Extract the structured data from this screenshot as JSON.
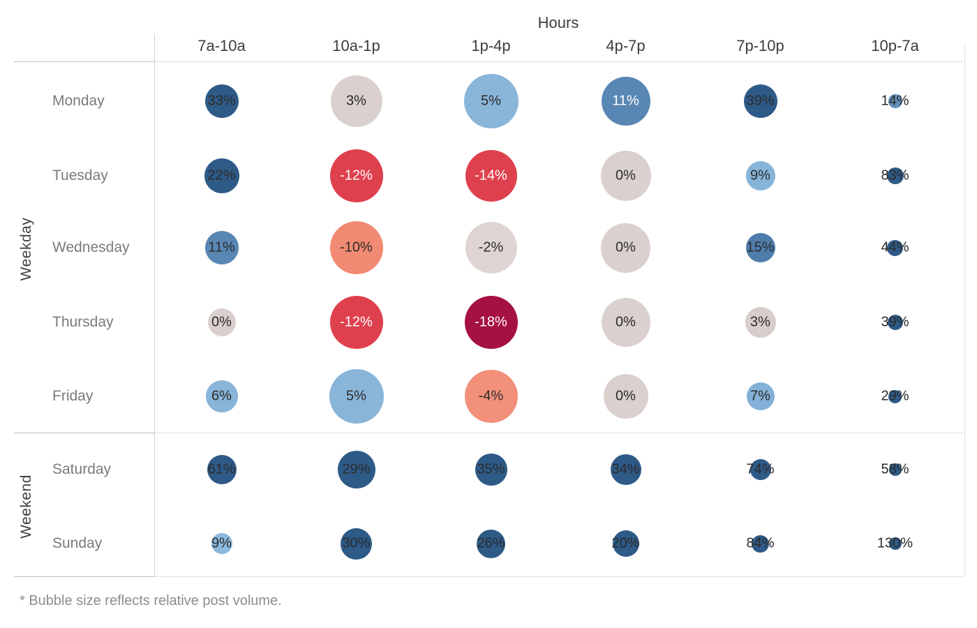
{
  "axis": {
    "title": "Hours"
  },
  "footnote": "* Bubble size reflects relative post volume.",
  "columns": [
    "7a-10a",
    "10a-1p",
    "1p-4p",
    "4p-7p",
    "7p-10p",
    "10p-7a"
  ],
  "groups": [
    {
      "label": "Weekday",
      "rows": [
        {
          "label": "Monday",
          "cells": [
            {
              "label": "33%",
              "size": 48,
              "fill": "#2e5a87",
              "text": "#2b2b2b"
            },
            {
              "label": "3%",
              "size": 74,
              "fill": "#dad0cd",
              "text": "#2b2b2b"
            },
            {
              "label": "5%",
              "size": 78,
              "fill": "#89b5d9",
              "text": "#2b2b2b"
            },
            {
              "label": "11%",
              "size": 70,
              "fill": "#5987b4",
              "text": "#ffffff"
            },
            {
              "label": "39%",
              "size": 48,
              "fill": "#2e5a87",
              "text": "#2b2b2b"
            },
            {
              "label": "14%",
              "size": 20,
              "fill": "#6290ba",
              "text": "#2b2b2b"
            }
          ]
        },
        {
          "label": "Tuesday",
          "cells": [
            {
              "label": "22%",
              "size": 50,
              "fill": "#2e5a87",
              "text": "#2b2b2b"
            },
            {
              "label": "-12%",
              "size": 76,
              "fill": "#df404e",
              "text": "#ffffff"
            },
            {
              "label": "-14%",
              "size": 74,
              "fill": "#df404e",
              "text": "#ffffff"
            },
            {
              "label": "0%",
              "size": 72,
              "fill": "#dad0cd",
              "text": "#2b2b2b"
            },
            {
              "label": "9%",
              "size": 42,
              "fill": "#87b5da",
              "text": "#2b2b2b"
            },
            {
              "label": "83%",
              "size": 24,
              "fill": "#2e5a87",
              "text": "#2b2b2b"
            }
          ]
        },
        {
          "label": "Wednesday",
          "cells": [
            {
              "label": "11%",
              "size": 48,
              "fill": "#5987b4",
              "text": "#2b2b2b"
            },
            {
              "label": "-10%",
              "size": 76,
              "fill": "#f18a72",
              "text": "#2b2b2b"
            },
            {
              "label": "-2%",
              "size": 74,
              "fill": "#ded4d1",
              "text": "#2b2b2b"
            },
            {
              "label": "0%",
              "size": 71,
              "fill": "#dad0cd",
              "text": "#2b2b2b"
            },
            {
              "label": "15%",
              "size": 42,
              "fill": "#4e7dab",
              "text": "#2b2b2b"
            },
            {
              "label": "44%",
              "size": 23,
              "fill": "#2e5a87",
              "text": "#2b2b2b"
            }
          ]
        },
        {
          "label": "Thursday",
          "cells": [
            {
              "label": "0%",
              "size": 40,
              "fill": "#dad0cd",
              "text": "#2b2b2b"
            },
            {
              "label": "-12%",
              "size": 76,
              "fill": "#df404e",
              "text": "#ffffff"
            },
            {
              "label": "-18%",
              "size": 76,
              "fill": "#a51140",
              "text": "#ffffff"
            },
            {
              "label": "0%",
              "size": 70,
              "fill": "#dad0cd",
              "text": "#2b2b2b"
            },
            {
              "label": "3%",
              "size": 44,
              "fill": "#d7cdca",
              "text": "#2b2b2b"
            },
            {
              "label": "39%",
              "size": 22,
              "fill": "#2e5a87",
              "text": "#2b2b2b"
            }
          ]
        },
        {
          "label": "Friday",
          "cells": [
            {
              "label": "6%",
              "size": 46,
              "fill": "#89b5d9",
              "text": "#2b2b2b"
            },
            {
              "label": "5%",
              "size": 78,
              "fill": "#89b5d9",
              "text": "#2b2b2b"
            },
            {
              "label": "-4%",
              "size": 76,
              "fill": "#f29079",
              "text": "#2b2b2b"
            },
            {
              "label": "0%",
              "size": 64,
              "fill": "#dad0cd",
              "text": "#2b2b2b"
            },
            {
              "label": "7%",
              "size": 40,
              "fill": "#83b1d7",
              "text": "#2b2b2b"
            },
            {
              "label": "29%",
              "size": 19,
              "fill": "#2e5a87",
              "text": "#2b2b2b"
            }
          ]
        }
      ]
    },
    {
      "label": "Weekend",
      "rows": [
        {
          "label": "Saturday",
          "cells": [
            {
              "label": "61%",
              "size": 42,
              "fill": "#2e5a87",
              "text": "#2b2b2b"
            },
            {
              "label": "29%",
              "size": 54,
              "fill": "#2e5a87",
              "text": "#2b2b2b"
            },
            {
              "label": "35%",
              "size": 46,
              "fill": "#2e5a87",
              "text": "#2b2b2b"
            },
            {
              "label": "34%",
              "size": 44,
              "fill": "#2e5a87",
              "text": "#2b2b2b"
            },
            {
              "label": "74%",
              "size": 30,
              "fill": "#2e5a87",
              "text": "#2b2b2b"
            },
            {
              "label": "58%",
              "size": 18,
              "fill": "#2e5a87",
              "text": "#2b2b2b"
            }
          ]
        },
        {
          "label": "Sunday",
          "cells": [
            {
              "label": "9%",
              "size": 30,
              "fill": "#8cb9dd",
              "text": "#2b2b2b"
            },
            {
              "label": "30%",
              "size": 45,
              "fill": "#2e5a87",
              "text": "#2b2b2b"
            },
            {
              "label": "26%",
              "size": 41,
              "fill": "#2e5a87",
              "text": "#2b2b2b"
            },
            {
              "label": "20%",
              "size": 38,
              "fill": "#2e5a87",
              "text": "#2b2b2b"
            },
            {
              "label": "84%",
              "size": 25,
              "fill": "#2e5a87",
              "text": "#2b2b2b"
            },
            {
              "label": "130%",
              "size": 18,
              "fill": "#2e5a87",
              "text": "#2b2b2b"
            }
          ]
        }
      ]
    }
  ],
  "colors": {
    "positive_dark_blue": "#2e5a87",
    "positive_medium_blue": "#5987b4",
    "positive_light_blue": "#89b5d9",
    "neutral_gray": "#dad0cd",
    "negative_red": "#df404e",
    "negative_salmon": "#f18a72",
    "negative_crimson": "#a51140",
    "grid_line_light": "#dedede",
    "grid_line_dark": "#bdbdbd",
    "axis_line": "#cfcfcf"
  },
  "chart_data": {
    "type": "heatmap",
    "title": "Hours",
    "x_categories": [
      "7a-10a",
      "10a-1p",
      "1p-4p",
      "4p-7p",
      "7p-10p",
      "10p-7a"
    ],
    "y_categories": [
      "Monday",
      "Tuesday",
      "Wednesday",
      "Thursday",
      "Friday",
      "Saturday",
      "Sunday"
    ],
    "row_groups": [
      {
        "label": "Weekday",
        "rows": [
          "Monday",
          "Tuesday",
          "Wednesday",
          "Thursday",
          "Friday"
        ]
      },
      {
        "label": "Weekend",
        "rows": [
          "Saturday",
          "Sunday"
        ]
      }
    ],
    "values_pct": [
      [
        33,
        3,
        5,
        11,
        39,
        14
      ],
      [
        22,
        -12,
        -14,
        0,
        9,
        83
      ],
      [
        11,
        -10,
        -2,
        0,
        15,
        44
      ],
      [
        0,
        -12,
        -18,
        0,
        3,
        39
      ],
      [
        6,
        5,
        -4,
        0,
        7,
        29
      ],
      [
        61,
        29,
        35,
        34,
        74,
        58
      ],
      [
        9,
        30,
        26,
        20,
        84,
        130
      ]
    ],
    "bubble_size_px": [
      [
        48,
        74,
        78,
        70,
        48,
        20
      ],
      [
        50,
        76,
        74,
        72,
        42,
        24
      ],
      [
        48,
        76,
        74,
        71,
        42,
        23
      ],
      [
        40,
        76,
        76,
        70,
        44,
        22
      ],
      [
        46,
        78,
        76,
        64,
        40,
        19
      ],
      [
        42,
        54,
        46,
        44,
        30,
        18
      ],
      [
        30,
        45,
        41,
        38,
        25,
        18
      ]
    ],
    "color_encoding": "diverging scale: crimson/red = negative %, warm gray near 0%, light-to-dark blue = increasing positive %",
    "size_encoding": "bubble size reflects relative post volume",
    "legend_position": "none",
    "annotation": "* Bubble size reflects relative post volume."
  }
}
